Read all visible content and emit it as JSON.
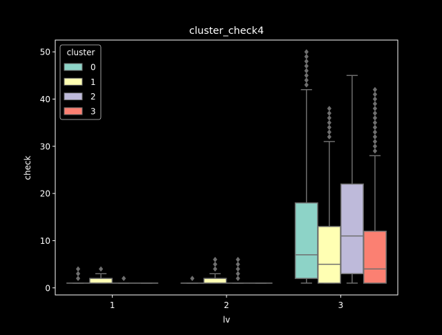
{
  "chart_data": {
    "type": "box",
    "title": "cluster_check4",
    "xlabel": "lv",
    "ylabel": "check",
    "categories": [
      "1",
      "2",
      "3"
    ],
    "y_ticks": [
      0,
      10,
      20,
      30,
      40,
      50
    ],
    "ylim": [
      -1.5,
      52.5
    ],
    "grid": false,
    "legend": {
      "title": "cluster",
      "placement": "top-left"
    },
    "series": [
      {
        "name": "0",
        "color": "#8dd3c7",
        "boxes": [
          {
            "category": "1",
            "q1": 1,
            "median": 1,
            "q3": 1,
            "whisker_low": 1,
            "whisker_high": 1,
            "outliers": [
              2,
              3,
              4
            ]
          },
          {
            "category": "2",
            "q1": 1,
            "median": 1,
            "q3": 1,
            "whisker_low": 1,
            "whisker_high": 1,
            "outliers": [
              2
            ]
          },
          {
            "category": "3",
            "q1": 2,
            "median": 7,
            "q3": 18,
            "whisker_low": 1,
            "whisker_high": 42,
            "outliers": [
              43,
              44,
              45,
              46,
              47,
              48,
              49,
              50
            ]
          }
        ]
      },
      {
        "name": "1",
        "color": "#ffffb3",
        "boxes": [
          {
            "category": "1",
            "q1": 1,
            "median": 1,
            "q3": 2,
            "whisker_low": 1,
            "whisker_high": 3,
            "outliers": [
              4
            ]
          },
          {
            "category": "2",
            "q1": 1,
            "median": 1,
            "q3": 2,
            "whisker_low": 1,
            "whisker_high": 3,
            "outliers": [
              4,
              5,
              6
            ]
          },
          {
            "category": "3",
            "q1": 1,
            "median": 5,
            "q3": 13,
            "whisker_low": 1,
            "whisker_high": 31,
            "outliers": [
              32,
              33,
              34,
              35,
              36,
              37,
              38
            ]
          }
        ]
      },
      {
        "name": "2",
        "color": "#bebada",
        "boxes": [
          {
            "category": "1",
            "q1": 1,
            "median": 1,
            "q3": 1,
            "whisker_low": 1,
            "whisker_high": 1,
            "outliers": [
              2
            ]
          },
          {
            "category": "2",
            "q1": 1,
            "median": 1,
            "q3": 1,
            "whisker_low": 1,
            "whisker_high": 1,
            "outliers": [
              2,
              3,
              4,
              5,
              6
            ]
          },
          {
            "category": "3",
            "q1": 3,
            "median": 11,
            "q3": 22,
            "whisker_low": 1,
            "whisker_high": 45,
            "outliers": []
          }
        ]
      },
      {
        "name": "3",
        "color": "#fb8072",
        "boxes": [
          {
            "category": "1",
            "q1": 1,
            "median": 1,
            "q3": 1,
            "whisker_low": 1,
            "whisker_high": 1,
            "outliers": []
          },
          {
            "category": "2",
            "q1": 1,
            "median": 1,
            "q3": 1,
            "whisker_low": 1,
            "whisker_high": 1,
            "outliers": []
          },
          {
            "category": "3",
            "q1": 1,
            "median": 4,
            "q3": 12,
            "whisker_low": 1,
            "whisker_high": 28,
            "outliers": [
              29,
              30,
              31,
              32,
              33,
              34,
              35,
              36,
              37,
              38,
              39,
              40,
              41,
              42
            ]
          }
        ]
      }
    ]
  },
  "style": {
    "background": "#000000",
    "foreground": "#ffffff",
    "box_edge": "#6e6e6e"
  }
}
